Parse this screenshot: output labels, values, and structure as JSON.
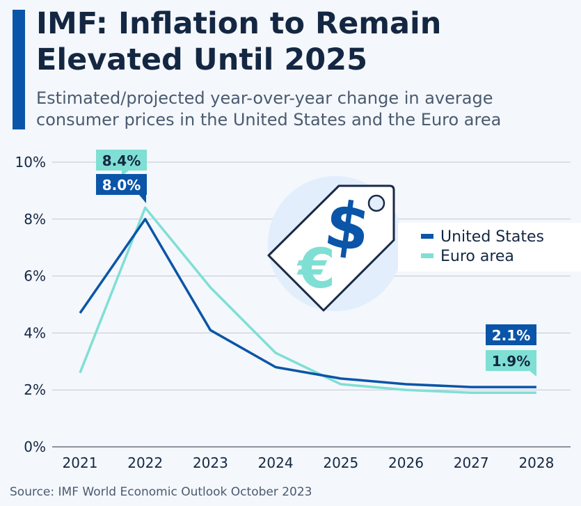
{
  "title": "IMF: Inflation to Remain Elevated Until 2025",
  "subtitle": "Estimated/projected year-over-year change in average consumer prices in the United States and the Euro area",
  "source": "Source: IMF World Economic Outlook October 2023",
  "colors": {
    "accent": "#0a55a8",
    "us": "#0a55a8",
    "euro": "#7fdfd4",
    "background": "#f4f7fb"
  },
  "icon": "price-tag-dollar-euro-icon",
  "chart_data": {
    "type": "line",
    "x": [
      "2021",
      "2022",
      "2023",
      "2024",
      "2025",
      "2026",
      "2027",
      "2028"
    ],
    "ylim": [
      0,
      10
    ],
    "yticks": [
      "0%",
      "2%",
      "4%",
      "6%",
      "8%",
      "10%"
    ],
    "grid": true,
    "legend_placement": "right",
    "series": [
      {
        "name": "United States",
        "values": [
          4.7,
          8.0,
          4.1,
          2.8,
          2.4,
          2.2,
          2.1,
          2.1
        ],
        "color": "#0a55a8"
      },
      {
        "name": "Euro area",
        "values": [
          2.6,
          8.4,
          5.6,
          3.3,
          2.2,
          2.0,
          1.9,
          1.9
        ],
        "color": "#7fdfd4"
      }
    ],
    "annotations": [
      {
        "series": "Euro area",
        "x": "2022",
        "text": "8.4%"
      },
      {
        "series": "United States",
        "x": "2022",
        "text": "8.0%"
      },
      {
        "series": "United States",
        "x": "2028",
        "text": "2.1%"
      },
      {
        "series": "Euro area",
        "x": "2028",
        "text": "1.9%"
      }
    ]
  }
}
